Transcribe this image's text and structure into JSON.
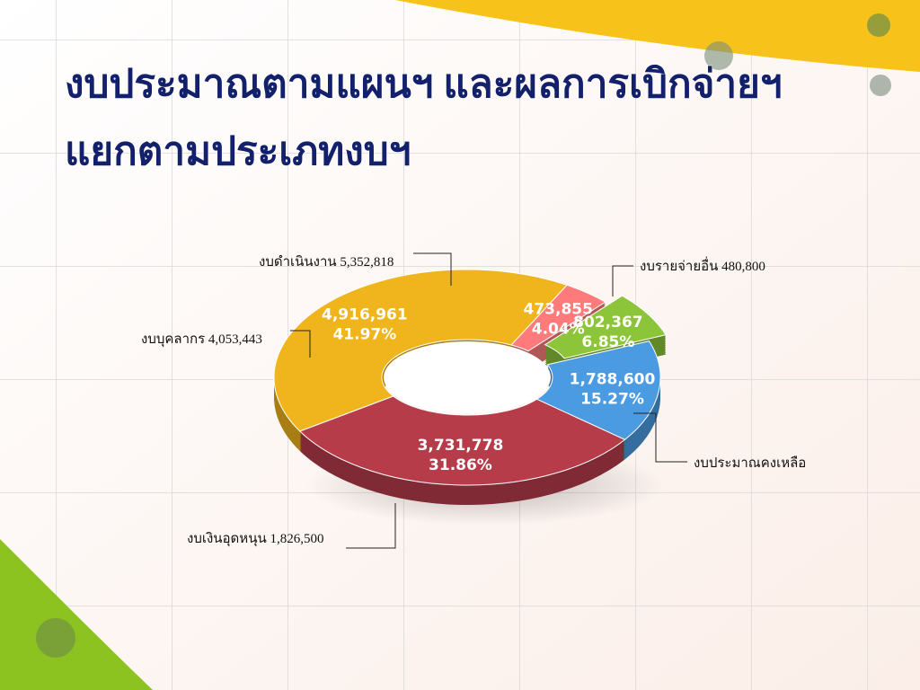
{
  "chart_data": {
    "type": "pie",
    "title": [
      "งบประมาณตามแผนฯ และผลการเบิกจ่ายฯ",
      "แยกตามประเภทงบฯ"
    ],
    "values": [
      4916961,
      473855,
      802367,
      1788600,
      3731778
    ],
    "value_labels": [
      "4,916,961",
      "473,855",
      "802,367",
      "1,788,600",
      "3,731,778"
    ],
    "percent_labels": [
      "41.97%",
      "4.04%",
      "6.85%",
      "15.27%",
      "31.86%"
    ],
    "colors": [
      "#f0b41c",
      "#ff7b7b",
      "#8cc43a",
      "#4a9be2",
      "#b63c4a"
    ],
    "exploded": [
      false,
      false,
      true,
      false,
      false
    ],
    "annotations": [
      "งบดำเนินงาน  5,352,818",
      "งบรายจ่ายอื่น   480,800",
      "งบประมาณคงเหลือ",
      "งบเงินอุดหนุน 1,826,500",
      "งบบุคลากร  4,053,443"
    ]
  }
}
